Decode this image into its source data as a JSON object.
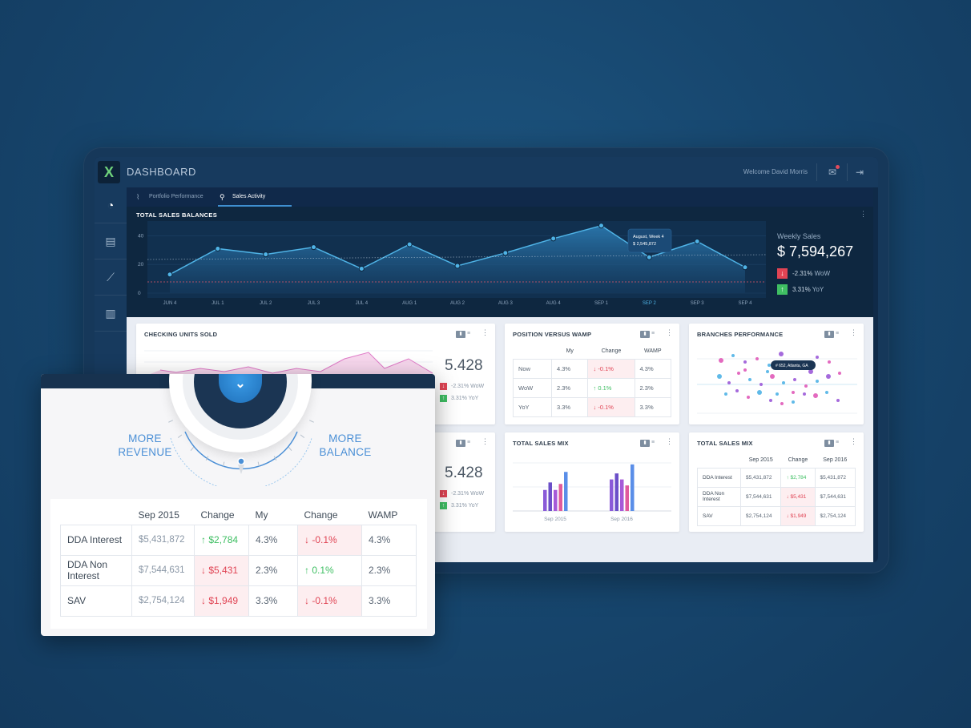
{
  "app": {
    "logo": "X",
    "title": "DASHBOARD",
    "welcome": "Welcome David Morris"
  },
  "icons": {
    "mail": "mail-icon",
    "logout": "logout-icon"
  },
  "sidebar": {
    "items": [
      "gauge-icon",
      "monitor-chart-icon",
      "growth-chart-icon",
      "reports-icon"
    ]
  },
  "tabs": [
    {
      "label": "Portfolio Performance"
    },
    {
      "label": "Sales Activity"
    }
  ],
  "total_sales": {
    "title": "TOTAL SALES BALANCES",
    "weekly_label": "Weekly Sales",
    "weekly_value": "$ 7,594,267",
    "wow": "-2.31%",
    "wow_label": "WoW",
    "yoy": "3.31%",
    "yoy_label": "YoY",
    "tooltip_title": "August, Week 4",
    "tooltip_value": "$ 2,545,872"
  },
  "chart_data": [
    {
      "type": "area",
      "title": "TOTAL SALES BALANCES",
      "categories": [
        "JUN 4",
        "JUL 1",
        "JUL 2",
        "JUL 3",
        "JUL 4",
        "AUG 1",
        "AUG 2",
        "AUG 3",
        "AUG 4",
        "SEP 1",
        "SEP 2",
        "SEP 3",
        "SEP 4"
      ],
      "y_ticks": [
        0,
        20,
        40
      ],
      "ylim": [
        0,
        48
      ],
      "series": [
        {
          "values": [
            13,
            31,
            27,
            32,
            17,
            34,
            19,
            28,
            38,
            47,
            25,
            36,
            18
          ]
        }
      ],
      "selected_category": "SEP 2"
    },
    {
      "type": "bar",
      "title": "TOTAL SALES MIX",
      "categories": [
        "Sep 2015",
        "Sep 2016"
      ],
      "series": [
        {
          "values": [
            14,
            21
          ]
        },
        {
          "values": [
            19,
            25
          ]
        },
        {
          "values": [
            14,
            21
          ]
        },
        {
          "values": [
            18,
            17
          ]
        },
        {
          "values": [
            26,
            31
          ]
        }
      ],
      "colors": [
        "#8a5ad8",
        "#6b4fc8",
        "#a65ad8",
        "#e05a9c",
        "#5a8ee8"
      ]
    }
  ],
  "checking_units": {
    "title": "CHECKING UNITS SOLD",
    "value": "5.428",
    "wow": "-2.31% WoW",
    "yoy": "3.31% YoY"
  },
  "second_card": {
    "value": "5.428",
    "wow": "-2.31% WoW",
    "yoy": "3.31% YoY"
  },
  "wamp": {
    "title": "POSITION VERSUS WAMP",
    "headers": [
      "My",
      "Change",
      "WAMP"
    ],
    "rows": [
      {
        "label": "Now",
        "my": "4.3%",
        "change": "-0.1%",
        "dir": "down",
        "wamp": "4.3%"
      },
      {
        "label": "WoW",
        "my": "2.3%",
        "change": "0.1%",
        "dir": "up",
        "wamp": "2.3%"
      },
      {
        "label": "YoY",
        "my": "3.3%",
        "change": "-0.1%",
        "dir": "down",
        "wamp": "3.3%"
      }
    ]
  },
  "branches": {
    "title": "BRANCHES PERFORMANCE",
    "tooltip": "# 652, Atlanta, GA"
  },
  "sales_mix_chart": {
    "title": "TOTAL SALES MIX"
  },
  "sales_mix_table": {
    "title": "TOTAL SALES MIX",
    "headers": [
      "Sep 2015",
      "Change",
      "Sep 2016"
    ],
    "rows": [
      {
        "label": "DDA Interest",
        "a": "$5,431,872",
        "change": "$2,784",
        "dir": "up",
        "b": "$5,431,872"
      },
      {
        "label": "DDA Non Interest",
        "a": "$7,544,631",
        "change": "$5,431",
        "dir": "down",
        "b": "$7,544,631"
      },
      {
        "label": "SAV",
        "a": "$2,754,124",
        "change": "$1,949",
        "dir": "down",
        "b": "$2,754,124"
      }
    ]
  },
  "overlay": {
    "left_label": "MORE\nREVENUE",
    "right_label": "MORE\nBALANCE",
    "headers": [
      "Sep 2015",
      "Change",
      "My",
      "Change",
      "WAMP"
    ],
    "rows": [
      {
        "label": "DDA Interest",
        "sep": "$5,431,872",
        "change": "$2,784",
        "cdir": "up",
        "my": "4.3%",
        "change2": "-0.1%",
        "c2dir": "down",
        "wamp": "4.3%"
      },
      {
        "label": "DDA Non Interest",
        "sep": "$7,544,631",
        "change": "$5,431",
        "cdir": "down",
        "my": "2.3%",
        "change2": "0.1%",
        "c2dir": "up",
        "wamp": "2.3%"
      },
      {
        "label": "SAV",
        "sep": "$2,754,124",
        "change": "$1,949",
        "cdir": "down",
        "my": "3.3%",
        "change2": "-0.1%",
        "c2dir": "down",
        "wamp": "3.3%"
      }
    ]
  }
}
